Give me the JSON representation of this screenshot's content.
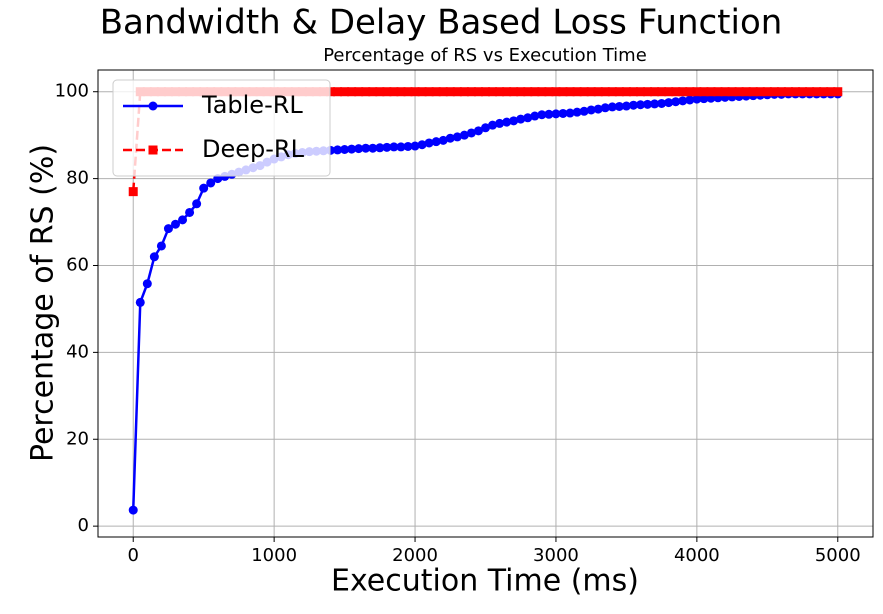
{
  "chart_data": {
    "type": "line",
    "suptitle": "Bandwidth & Delay Based Loss Function",
    "title": "Percentage of RS vs Execution Time",
    "xlabel": "Execution Time (ms)",
    "ylabel": "Percentage of RS (%)",
    "x": [
      0,
      50,
      100,
      150,
      200,
      250,
      300,
      350,
      400,
      450,
      500,
      550,
      600,
      650,
      700,
      750,
      800,
      850,
      900,
      950,
      1000,
      1050,
      1100,
      1150,
      1200,
      1250,
      1300,
      1350,
      1400,
      1450,
      1500,
      1550,
      1600,
      1650,
      1700,
      1750,
      1800,
      1850,
      1900,
      1950,
      2000,
      2050,
      2100,
      2150,
      2200,
      2250,
      2300,
      2350,
      2400,
      2450,
      2500,
      2550,
      2600,
      2650,
      2700,
      2750,
      2800,
      2850,
      2900,
      2950,
      3000,
      3050,
      3100,
      3150,
      3200,
      3250,
      3300,
      3350,
      3400,
      3450,
      3500,
      3550,
      3600,
      3650,
      3700,
      3750,
      3800,
      3850,
      3900,
      3950,
      4000,
      4050,
      4100,
      4150,
      4200,
      4250,
      4300,
      4350,
      4400,
      4450,
      4500,
      4550,
      4600,
      4650,
      4700,
      4750,
      4800,
      4850,
      4900,
      4950,
      5000
    ],
    "series": [
      {
        "name": "Table-RL",
        "color": "#0000ff",
        "marker": "circle",
        "dash": false,
        "values": [
          3.7,
          51.5,
          55.8,
          62,
          64.5,
          68.5,
          69.5,
          70.5,
          72.2,
          74.2,
          77.8,
          79,
          80,
          80.5,
          81,
          81.5,
          82,
          82.5,
          83,
          83.8,
          84.5,
          85,
          85.5,
          85.8,
          86,
          86.2,
          86.3,
          86.4,
          86.5,
          86.6,
          86.7,
          86.8,
          86.9,
          87,
          87,
          87.1,
          87.2,
          87.3,
          87.3,
          87.4,
          87.5,
          87.8,
          88.2,
          88.5,
          88.8,
          89.3,
          89.6,
          90,
          90.5,
          91,
          91.7,
          92.3,
          92.7,
          93,
          93.3,
          93.7,
          94,
          94.4,
          94.7,
          94.8,
          94.9,
          95,
          95.1,
          95.3,
          95.5,
          95.8,
          96,
          96.3,
          96.5,
          96.6,
          96.7,
          96.9,
          97,
          97.1,
          97.2,
          97.3,
          97.5,
          97.7,
          97.9,
          98.1,
          98.3,
          98.4,
          98.5,
          98.6,
          98.7,
          98.8,
          98.9,
          99,
          99.1,
          99.2,
          99.3,
          99.4,
          99.4,
          99.5,
          99.5,
          99.5,
          99.5,
          99.5,
          99.5,
          99.5,
          99.5
        ]
      },
      {
        "name": "Deep-RL",
        "color": "#ff0000",
        "marker": "square",
        "dash": true,
        "values": [
          77,
          100,
          100,
          100,
          100,
          100,
          100,
          100,
          100,
          100,
          100,
          100,
          100,
          100,
          100,
          100,
          100,
          100,
          100,
          100,
          100,
          100,
          100,
          100,
          100,
          100,
          100,
          100,
          100,
          100,
          100,
          100,
          100,
          100,
          100,
          100,
          100,
          100,
          100,
          100,
          100,
          100,
          100,
          100,
          100,
          100,
          100,
          100,
          100,
          100,
          100,
          100,
          100,
          100,
          100,
          100,
          100,
          100,
          100,
          100,
          100,
          100,
          100,
          100,
          100,
          100,
          100,
          100,
          100,
          100,
          100,
          100,
          100,
          100,
          100,
          100,
          100,
          100,
          100,
          100,
          100,
          100,
          100,
          100,
          100,
          100,
          100,
          100,
          100,
          100,
          100,
          100,
          100,
          100,
          100,
          100,
          100,
          100,
          100,
          100,
          100
        ]
      }
    ],
    "xlim": [
      -250,
      5250
    ],
    "ylim": [
      -2.5,
      105
    ],
    "xticks": [
      0,
      1000,
      2000,
      3000,
      4000,
      5000
    ],
    "yticks": [
      0,
      20,
      40,
      60,
      80,
      100
    ],
    "grid": true,
    "legend": "upper left"
  }
}
